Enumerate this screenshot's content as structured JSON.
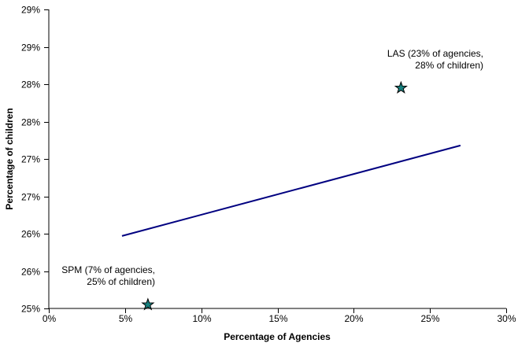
{
  "chart_data": {
    "type": "scatter",
    "title": "",
    "xlabel": "Percentage of Agencies",
    "ylabel": "Percentage of children",
    "xlim": [
      0,
      30
    ],
    "ylim": [
      25,
      29
    ],
    "grid": false,
    "legend": "none",
    "x_ticks": {
      "values": [
        0,
        5,
        10,
        15,
        20,
        25,
        30
      ],
      "labels": [
        "0%",
        "5%",
        "10%",
        "15%",
        "20%",
        "25%",
        "30%"
      ]
    },
    "y_ticks": {
      "values": [
        25,
        25.5,
        26,
        26.5,
        27,
        27.5,
        28,
        28.5,
        29
      ],
      "labels": [
        "25%",
        "26%",
        "26%",
        "27%",
        "27%",
        "28%",
        "28%",
        "29%",
        "29%"
      ]
    },
    "points": [
      {
        "name": "SPM",
        "x": 6.5,
        "y": 25.05,
        "label_lines": [
          "SPM (7% of agencies,",
          "25% of children)"
        ]
      },
      {
        "name": "LAS",
        "x": 23.1,
        "y": 27.95,
        "label_lines": [
          "LAS (23% of agencies,",
          "28% of children)"
        ]
      }
    ],
    "trendline": {
      "x1": 4.8,
      "y1": 25.97,
      "x2": 27.0,
      "y2": 27.18
    },
    "colors": {
      "marker_fill": "#17817F",
      "marker_stroke": "#000000",
      "trend_line": "#000080",
      "axis": "#000000",
      "text": "#000000",
      "background": "#FFFFFF"
    }
  }
}
